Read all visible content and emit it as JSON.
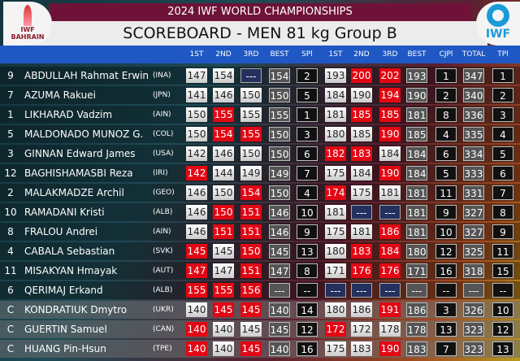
{
  "header": {
    "event": "2024 IWF WORLD CHAMPIONSHIPS",
    "title": "SCOREBOARD - MEN 81 kg Group B",
    "left_logo_text": "IWF BAHRAIN",
    "right_logo_text": "IWF"
  },
  "columns": [
    "1ST",
    "2ND",
    "3RD",
    "BEST",
    "SPl",
    "1ST",
    "2ND",
    "3RD",
    "BEST",
    "CJPl",
    "TOTAL",
    "TPl"
  ],
  "colors": {
    "good": "#e0e0e0",
    "fail": "#e30613",
    "not_attempted": "#24305e",
    "header_bar": "#1f58c4",
    "title_bar": "#6e1238"
  },
  "rows": [
    {
      "lot": "9",
      "name": "ABDULLAH Rahmat Erwin",
      "country": "(INA)",
      "group": "B",
      "cells": [
        [
          "147",
          "good"
        ],
        [
          "154",
          "good"
        ],
        [
          "---",
          "none"
        ],
        [
          "154",
          "best"
        ],
        [
          "2",
          "place"
        ],
        [
          "193",
          "good"
        ],
        [
          "200",
          "fail"
        ],
        [
          "202",
          "fail"
        ],
        [
          "193",
          "best"
        ],
        [
          "1",
          "place"
        ],
        [
          "347",
          "best"
        ],
        [
          "1",
          "place"
        ]
      ]
    },
    {
      "lot": "7",
      "name": "AZUMA Rakuei",
      "country": "(JPN)",
      "group": "B",
      "cells": [
        [
          "141",
          "good"
        ],
        [
          "146",
          "good"
        ],
        [
          "150",
          "good"
        ],
        [
          "150",
          "best"
        ],
        [
          "5",
          "place"
        ],
        [
          "184",
          "good"
        ],
        [
          "190",
          "good"
        ],
        [
          "194",
          "fail"
        ],
        [
          "190",
          "best"
        ],
        [
          "2",
          "place"
        ],
        [
          "340",
          "best"
        ],
        [
          "2",
          "place"
        ]
      ]
    },
    {
      "lot": "1",
      "name": "LIKHARAD Vadzim",
      "country": "(AIN)",
      "group": "B",
      "cells": [
        [
          "150",
          "good"
        ],
        [
          "155",
          "fail"
        ],
        [
          "155",
          "good"
        ],
        [
          "155",
          "best"
        ],
        [
          "1",
          "place"
        ],
        [
          "181",
          "good"
        ],
        [
          "185",
          "fail"
        ],
        [
          "185",
          "fail"
        ],
        [
          "181",
          "best"
        ],
        [
          "8",
          "place"
        ],
        [
          "336",
          "best"
        ],
        [
          "3",
          "place"
        ]
      ]
    },
    {
      "lot": "5",
      "name": "MALDONADO MUNOZ G.",
      "country": "(COL)",
      "group": "B",
      "cells": [
        [
          "150",
          "good"
        ],
        [
          "154",
          "fail"
        ],
        [
          "155",
          "fail"
        ],
        [
          "150",
          "best"
        ],
        [
          "3",
          "place"
        ],
        [
          "180",
          "good"
        ],
        [
          "185",
          "good"
        ],
        [
          "190",
          "fail"
        ],
        [
          "185",
          "best"
        ],
        [
          "4",
          "place"
        ],
        [
          "335",
          "best"
        ],
        [
          "4",
          "place"
        ]
      ]
    },
    {
      "lot": "3",
      "name": "GINNAN Edward James",
      "country": "(USA)",
      "group": "B",
      "cells": [
        [
          "142",
          "good"
        ],
        [
          "146",
          "good"
        ],
        [
          "150",
          "good"
        ],
        [
          "150",
          "best"
        ],
        [
          "6",
          "place"
        ],
        [
          "182",
          "fail"
        ],
        [
          "183",
          "fail"
        ],
        [
          "184",
          "good"
        ],
        [
          "184",
          "best"
        ],
        [
          "6",
          "place"
        ],
        [
          "334",
          "best"
        ],
        [
          "5",
          "place"
        ]
      ]
    },
    {
      "lot": "12",
      "name": "BAGHISHAMASBI Reza",
      "country": "(IRI)",
      "group": "B",
      "cells": [
        [
          "142",
          "fail"
        ],
        [
          "144",
          "good"
        ],
        [
          "149",
          "good"
        ],
        [
          "149",
          "best"
        ],
        [
          "7",
          "place"
        ],
        [
          "175",
          "good"
        ],
        [
          "184",
          "good"
        ],
        [
          "190",
          "fail"
        ],
        [
          "184",
          "best"
        ],
        [
          "5",
          "place"
        ],
        [
          "333",
          "best"
        ],
        [
          "6",
          "place"
        ]
      ]
    },
    {
      "lot": "2",
      "name": "MALAKMADZE Archil",
      "country": "(GEO)",
      "group": "B",
      "cells": [
        [
          "146",
          "good"
        ],
        [
          "150",
          "good"
        ],
        [
          "154",
          "fail"
        ],
        [
          "150",
          "best"
        ],
        [
          "4",
          "place"
        ],
        [
          "174",
          "fail"
        ],
        [
          "175",
          "good"
        ],
        [
          "181",
          "good"
        ],
        [
          "181",
          "best"
        ],
        [
          "11",
          "place"
        ],
        [
          "331",
          "best"
        ],
        [
          "7",
          "place"
        ]
      ]
    },
    {
      "lot": "10",
      "name": "RAMADANI Kristi",
      "country": "(ALB)",
      "group": "B",
      "cells": [
        [
          "146",
          "good"
        ],
        [
          "150",
          "fail"
        ],
        [
          "151",
          "fail"
        ],
        [
          "146",
          "best"
        ],
        [
          "10",
          "place"
        ],
        [
          "181",
          "good"
        ],
        [
          "---",
          "none"
        ],
        [
          "---",
          "none"
        ],
        [
          "181",
          "best"
        ],
        [
          "9",
          "place"
        ],
        [
          "327",
          "best"
        ],
        [
          "8",
          "place"
        ]
      ]
    },
    {
      "lot": "8",
      "name": "FRALOU Andrei",
      "country": "(AIN)",
      "group": "B",
      "cells": [
        [
          "146",
          "good"
        ],
        [
          "151",
          "fail"
        ],
        [
          "151",
          "fail"
        ],
        [
          "146",
          "best"
        ],
        [
          "9",
          "place"
        ],
        [
          "175",
          "good"
        ],
        [
          "181",
          "good"
        ],
        [
          "186",
          "fail"
        ],
        [
          "181",
          "best"
        ],
        [
          "10",
          "place"
        ],
        [
          "327",
          "best"
        ],
        [
          "9",
          "place"
        ]
      ]
    },
    {
      "lot": "4",
      "name": "CABALA Sebastian",
      "country": "(SVK)",
      "group": "B",
      "cells": [
        [
          "145",
          "fail"
        ],
        [
          "145",
          "good"
        ],
        [
          "150",
          "fail"
        ],
        [
          "145",
          "best"
        ],
        [
          "13",
          "place"
        ],
        [
          "180",
          "good"
        ],
        [
          "183",
          "fail"
        ],
        [
          "184",
          "fail"
        ],
        [
          "180",
          "best"
        ],
        [
          "12",
          "place"
        ],
        [
          "325",
          "best"
        ],
        [
          "11",
          "place"
        ]
      ]
    },
    {
      "lot": "11",
      "name": "MISAKYAN Hmayak",
      "country": "(AUT)",
      "group": "B",
      "cells": [
        [
          "147",
          "fail"
        ],
        [
          "147",
          "good"
        ],
        [
          "151",
          "fail"
        ],
        [
          "147",
          "best"
        ],
        [
          "8",
          "place"
        ],
        [
          "171",
          "good"
        ],
        [
          "176",
          "fail"
        ],
        [
          "176",
          "fail"
        ],
        [
          "171",
          "best"
        ],
        [
          "16",
          "place"
        ],
        [
          "318",
          "best"
        ],
        [
          "15",
          "place"
        ]
      ]
    },
    {
      "lot": "6",
      "name": "QERIMAJ Erkand",
      "country": "(ALB)",
      "group": "B",
      "cells": [
        [
          "155",
          "fail"
        ],
        [
          "155",
          "fail"
        ],
        [
          "156",
          "fail"
        ],
        [
          "---",
          "best"
        ],
        [
          "--",
          "place"
        ],
        [
          "---",
          "none"
        ],
        [
          "---",
          "none"
        ],
        [
          "---",
          "none"
        ],
        [
          "---",
          "best"
        ],
        [
          "--",
          "place"
        ],
        [
          "---",
          "best"
        ],
        [
          "--",
          "place"
        ]
      ]
    },
    {
      "lot": "C",
      "name": "KONDRATIUK Dmytro",
      "country": "(UKR)",
      "group": "C",
      "cells": [
        [
          "140",
          "good"
        ],
        [
          "145",
          "fail"
        ],
        [
          "145",
          "fail"
        ],
        [
          "140",
          "best"
        ],
        [
          "14",
          "place"
        ],
        [
          "180",
          "good"
        ],
        [
          "186",
          "good"
        ],
        [
          "191",
          "fail"
        ],
        [
          "186",
          "best"
        ],
        [
          "3",
          "place"
        ],
        [
          "326",
          "best"
        ],
        [
          "10",
          "place"
        ]
      ]
    },
    {
      "lot": "C",
      "name": "GUERTIN Samuel",
      "country": "(CAN)",
      "group": "C",
      "cells": [
        [
          "140",
          "fail"
        ],
        [
          "140",
          "good"
        ],
        [
          "145",
          "good"
        ],
        [
          "145",
          "best"
        ],
        [
          "12",
          "place"
        ],
        [
          "172",
          "fail"
        ],
        [
          "172",
          "good"
        ],
        [
          "178",
          "good"
        ],
        [
          "178",
          "best"
        ],
        [
          "13",
          "place"
        ],
        [
          "323",
          "best"
        ],
        [
          "12",
          "place"
        ]
      ]
    },
    {
      "lot": "C",
      "name": "HUANG Pin-Hsun",
      "country": "(TPE)",
      "group": "C",
      "cells": [
        [
          "140",
          "fail"
        ],
        [
          "140",
          "good"
        ],
        [
          "145",
          "fail"
        ],
        [
          "140",
          "best"
        ],
        [
          "16",
          "place"
        ],
        [
          "175",
          "good"
        ],
        [
          "183",
          "good"
        ],
        [
          "190",
          "fail"
        ],
        [
          "183",
          "best"
        ],
        [
          "7",
          "place"
        ],
        [
          "323",
          "best"
        ],
        [
          "13",
          "place"
        ]
      ]
    }
  ]
}
